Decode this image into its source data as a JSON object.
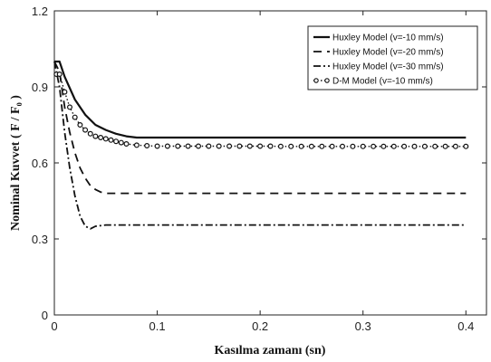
{
  "chart_data": {
    "type": "line",
    "xlabel": "Kasılma zamanı (sn)",
    "ylabel": "Nominal Kuvvet ( F / F₀ )",
    "xlim": [
      0,
      0.42
    ],
    "ylim": [
      0,
      1.2
    ],
    "xticks": [
      "0",
      "0.1",
      "0.2",
      "0.3",
      "0.4"
    ],
    "yticks": [
      "0",
      "0.3",
      "0.6",
      "0.9",
      "1.2"
    ],
    "legend_position": "top-right",
    "grid": false,
    "series": [
      {
        "name": "Huxley Model (v=-10 mm/s)",
        "style": "solid",
        "x": [
          0,
          0.005,
          0.01,
          0.02,
          0.03,
          0.04,
          0.05,
          0.06,
          0.07,
          0.08,
          0.09,
          0.1,
          0.15,
          0.2,
          0.25,
          0.3,
          0.35,
          0.4
        ],
        "y": [
          1.0,
          1.0,
          0.94,
          0.85,
          0.79,
          0.75,
          0.73,
          0.715,
          0.705,
          0.7,
          0.7,
          0.7,
          0.7,
          0.7,
          0.7,
          0.7,
          0.7,
          0.7
        ]
      },
      {
        "name": "Huxley Model (v=-20 mm/s)",
        "style": "dashed",
        "x": [
          0,
          0.005,
          0.01,
          0.015,
          0.02,
          0.025,
          0.03,
          0.035,
          0.04,
          0.045,
          0.05,
          0.06,
          0.1,
          0.2,
          0.3,
          0.4
        ],
        "y": [
          1.0,
          0.96,
          0.82,
          0.72,
          0.64,
          0.58,
          0.54,
          0.51,
          0.495,
          0.485,
          0.48,
          0.48,
          0.48,
          0.48,
          0.48,
          0.48
        ]
      },
      {
        "name": "Huxley Model (v=-30 mm/s)",
        "style": "dashdot",
        "x": [
          0,
          0.005,
          0.01,
          0.015,
          0.02,
          0.025,
          0.03,
          0.035,
          0.04,
          0.05,
          0.06,
          0.1,
          0.2,
          0.3,
          0.4
        ],
        "y": [
          1.0,
          0.9,
          0.72,
          0.58,
          0.47,
          0.39,
          0.35,
          0.34,
          0.35,
          0.355,
          0.355,
          0.355,
          0.355,
          0.355,
          0.355
        ]
      },
      {
        "name": "D-M Model (v=-10 mm/s)",
        "style": "dotted-markers",
        "x": [
          0.002,
          0.005,
          0.01,
          0.015,
          0.02,
          0.025,
          0.03,
          0.035,
          0.04,
          0.045,
          0.05,
          0.055,
          0.06,
          0.065,
          0.07,
          0.08,
          0.09,
          0.1,
          0.11,
          0.12,
          0.13,
          0.14,
          0.15,
          0.16,
          0.17,
          0.18,
          0.19,
          0.2,
          0.21,
          0.22,
          0.23,
          0.24,
          0.25,
          0.26,
          0.27,
          0.28,
          0.29,
          0.3,
          0.31,
          0.32,
          0.33,
          0.34,
          0.35,
          0.36,
          0.37,
          0.38,
          0.39,
          0.4
        ],
        "y": [
          0.95,
          0.95,
          0.88,
          0.82,
          0.78,
          0.75,
          0.73,
          0.715,
          0.705,
          0.7,
          0.695,
          0.69,
          0.685,
          0.68,
          0.675,
          0.67,
          0.668,
          0.666,
          0.666,
          0.666,
          0.666,
          0.666,
          0.666,
          0.666,
          0.666,
          0.666,
          0.666,
          0.666,
          0.666,
          0.665,
          0.665,
          0.665,
          0.665,
          0.665,
          0.665,
          0.665,
          0.665,
          0.665,
          0.665,
          0.665,
          0.665,
          0.665,
          0.665,
          0.665,
          0.665,
          0.665,
          0.665,
          0.665
        ]
      }
    ]
  }
}
